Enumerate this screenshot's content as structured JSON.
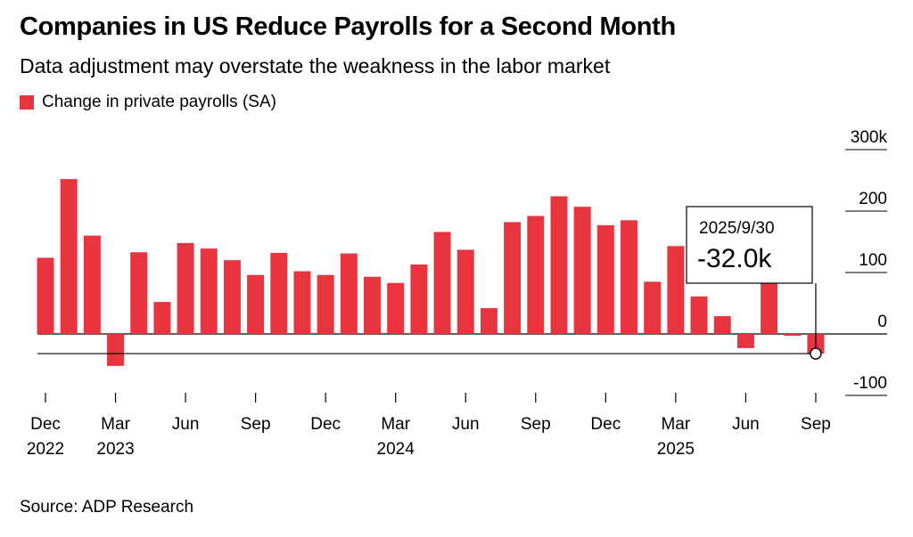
{
  "title": "Companies in US Reduce Payrolls for a Second Month",
  "subtitle": "Data adjustment may overstate the weakness in the labor market",
  "source": "Source: ADP Research",
  "colors": {
    "bar": "#e8343f",
    "axis": "#000000",
    "grid": "#000000"
  },
  "chart_data": {
    "type": "bar",
    "series": [
      {
        "name": "Change in private payrolls (SA)",
        "categories": [
          "2022-12",
          "2023-01",
          "2023-02",
          "2023-03",
          "2023-04",
          "2023-05",
          "2023-06",
          "2023-07",
          "2023-08",
          "2023-09",
          "2023-10",
          "2023-11",
          "2023-12",
          "2024-01",
          "2024-02",
          "2024-03",
          "2024-04",
          "2024-05",
          "2024-06",
          "2024-07",
          "2024-08",
          "2024-09",
          "2024-10",
          "2024-11",
          "2024-12",
          "2025-01",
          "2025-02",
          "2025-03",
          "2025-04",
          "2025-05",
          "2025-06",
          "2025-07",
          "2025-08",
          "2025-09"
        ],
        "values": [
          124,
          252,
          160,
          -52,
          133,
          52,
          148,
          139,
          120,
          96,
          132,
          102,
          96,
          131,
          93,
          83,
          113,
          166,
          137,
          42,
          182,
          192,
          224,
          207,
          177,
          185,
          85,
          143,
          61,
          29,
          -23,
          84,
          -3,
          -32
        ]
      }
    ],
    "x_tick_labels": [
      {
        "index": 0,
        "month": "Dec",
        "year": "2022"
      },
      {
        "index": 3,
        "month": "Mar",
        "year": "2023"
      },
      {
        "index": 6,
        "month": "Jun",
        "year": ""
      },
      {
        "index": 9,
        "month": "Sep",
        "year": ""
      },
      {
        "index": 12,
        "month": "Dec",
        "year": ""
      },
      {
        "index": 15,
        "month": "Mar",
        "year": "2024"
      },
      {
        "index": 18,
        "month": "Jun",
        "year": ""
      },
      {
        "index": 21,
        "month": "Sep",
        "year": ""
      },
      {
        "index": 24,
        "month": "Dec",
        "year": ""
      },
      {
        "index": 27,
        "month": "Mar",
        "year": "2025"
      },
      {
        "index": 30,
        "month": "Jun",
        "year": ""
      },
      {
        "index": 33,
        "month": "Sep",
        "year": ""
      }
    ],
    "y_ticks": [
      {
        "value": 300,
        "label": "300k"
      },
      {
        "value": 200,
        "label": "200"
      },
      {
        "value": 100,
        "label": "100"
      },
      {
        "value": 0,
        "label": "0"
      },
      {
        "value": -100,
        "label": "-100"
      }
    ],
    "ylim": [
      -100,
      300
    ],
    "grid": true,
    "axis_side": "right",
    "reference_line": {
      "value": -32
    },
    "annotation": {
      "index": 33,
      "date": "2025/9/30",
      "value_text": "-32.0k"
    }
  }
}
